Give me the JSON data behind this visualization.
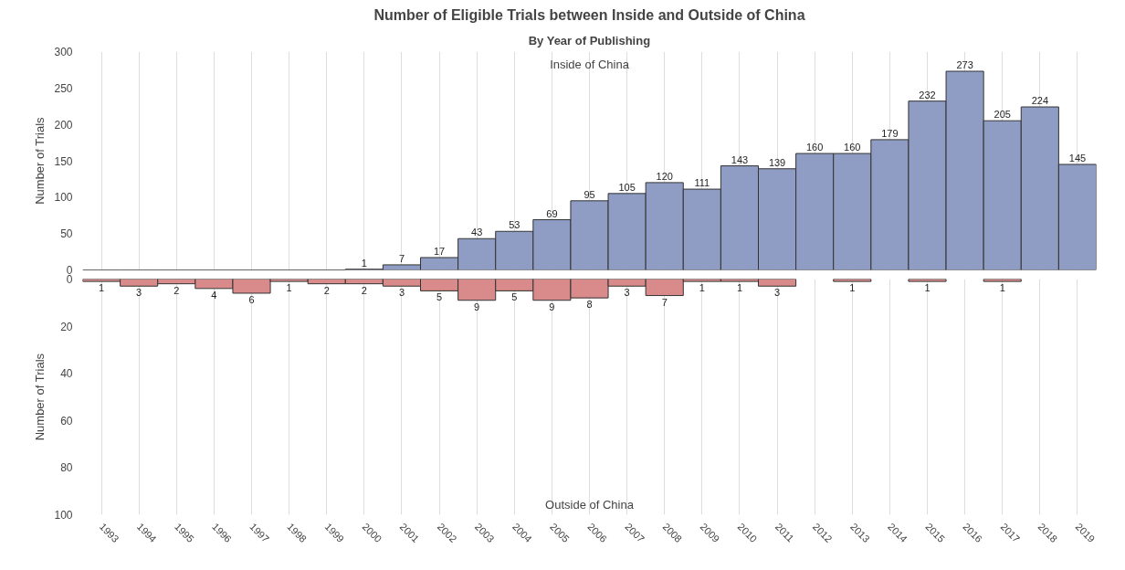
{
  "chart_data": [
    {
      "type": "bar",
      "title": "Number of Eligible Trials between Inside and Outside of China",
      "subtitle": "By Year of Publishing",
      "ylabel": "Number of Trials",
      "categories": [
        "1993",
        "1994",
        "1995",
        "1996",
        "1997",
        "1998",
        "1999",
        "2000",
        "2001",
        "2002",
        "2003",
        "2004",
        "2005",
        "2006",
        "2007",
        "2008",
        "2009",
        "2010",
        "2011",
        "2012",
        "2013",
        "2014",
        "2015",
        "2016",
        "2017",
        "2018",
        "2019"
      ],
      "series": [
        {
          "color": "#8f9cc4",
          "values": [
            0,
            0,
            0,
            0,
            0,
            0,
            0,
            1,
            7,
            17,
            43,
            53,
            69,
            95,
            105,
            120,
            111,
            143,
            139,
            160,
            160,
            179,
            232,
            273,
            205,
            224,
            145
          ]
        }
      ],
      "value_labels": [
        null,
        null,
        null,
        null,
        null,
        null,
        null,
        "1",
        "7",
        "17",
        "43",
        "53",
        "69",
        "95",
        "105",
        "120",
        "111",
        "143",
        "139",
        "160",
        "160",
        "179",
        "232",
        "273",
        "205",
        "224",
        "145"
      ],
      "ylim": [
        0,
        300
      ],
      "yticks": [
        0,
        50,
        100,
        150,
        200,
        250,
        300
      ],
      "grid": "x",
      "tick_labels": "y",
      "annotations": [
        "Inside of China"
      ]
    },
    {
      "type": "bar",
      "ylabel": "Number of Trials",
      "categories": [
        "1993",
        "1994",
        "1995",
        "1996",
        "1997",
        "1998",
        "1999",
        "2000",
        "2001",
        "2002",
        "2003",
        "2004",
        "2005",
        "2006",
        "2007",
        "2008",
        "2009",
        "2010",
        "2011",
        "2012",
        "2013",
        "2014",
        "2015",
        "2016",
        "2017",
        "2018",
        "2019"
      ],
      "series": [
        {
          "color": "#d98a8a",
          "values": [
            1,
            3,
            2,
            4,
            6,
            1,
            2,
            2,
            3,
            5,
            9,
            5,
            9,
            8,
            3,
            7,
            1,
            1,
            3,
            null,
            1,
            null,
            1,
            null,
            1,
            null,
            null
          ]
        }
      ],
      "data_labels": true,
      "ylim": [
        100,
        0
      ],
      "yticks": [
        0,
        20,
        40,
        60,
        80,
        100
      ],
      "grid": "x",
      "annotations": [
        "Outside of China"
      ]
    }
  ]
}
